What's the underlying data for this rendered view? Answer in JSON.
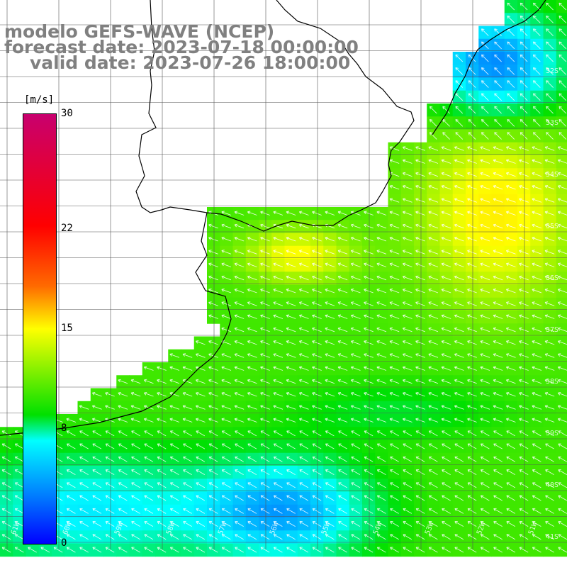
{
  "title": {
    "line1": "modelo GEFS-WAVE (NCEP)",
    "line2": "forecast date: 2023-07-18 00:00:00",
    "line3": "valid date: 2023-07-26 18:00:00"
  },
  "colorbar": {
    "unit": "[m/s]",
    "ticks": [
      {
        "label": "30",
        "value": 30
      },
      {
        "label": "22",
        "value": 22
      },
      {
        "label": "15",
        "value": 15
      },
      {
        "label": "8",
        "value": 8
      },
      {
        "label": "0",
        "value": 0
      }
    ],
    "colors": [
      "#0000ff",
      "#0070ff",
      "#00ffff",
      "#00e000",
      "#ffff00",
      "#ff6a00",
      "#ff0000",
      "#c8006e"
    ]
  },
  "lat_labels": [
    "32S",
    "33S",
    "34S",
    "35S",
    "36S",
    "37S",
    "38S",
    "39S",
    "40S",
    "41S"
  ],
  "lon_labels": [
    "61W",
    "60W",
    "59W",
    "58W",
    "57W",
    "56W",
    "55W",
    "54W",
    "53W",
    "52W",
    "51W"
  ],
  "colors": {
    "land": "#ffffff",
    "grid": "#000000",
    "coast": "#000000",
    "arrows": "#ffffff",
    "title": "#808080"
  }
}
